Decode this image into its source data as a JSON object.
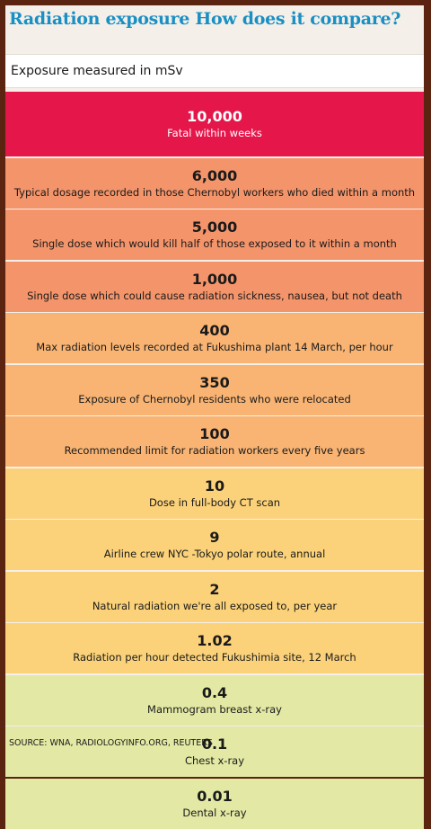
{
  "header": {
    "title": "Radiation exposure How does it compare?",
    "subtitle": "Exposure measured in mSv"
  },
  "source": "SOURCE: WNA, RADIOLOGYINFO.ORG, REUTERS",
  "chart_data": {
    "type": "table",
    "unit": "mSv",
    "rows": [
      {
        "value": "10,000",
        "label": "Fatal within weeks",
        "color": "#e5164a"
      },
      {
        "value": "6,000",
        "label": "Typical dosage recorded in those Chernobyl workers who died within a month",
        "color": "#f4946a"
      },
      {
        "value": "5,000",
        "label": "Single dose which would kill half of those exposed to it within a month",
        "color": "#f4946a"
      },
      {
        "value": "1,000",
        "label": "Single dose which could cause radiation sickness, nausea, but not death",
        "color": "#f4946a"
      },
      {
        "value": "400",
        "label": "Max radiation levels recorded at Fukushima plant 14 March, per hour",
        "color": "#f9b473"
      },
      {
        "value": "350",
        "label": "Exposure of Chernobyl residents who were relocated",
        "color": "#f9b473"
      },
      {
        "value": "100",
        "label": "Recommended limit for radiation workers every five years",
        "color": "#f9b473"
      },
      {
        "value": "10",
        "label": "Dose in full-body CT scan",
        "color": "#fbd27a"
      },
      {
        "value": "9",
        "label": "Airline crew NYC -Tokyo polar route, annual",
        "color": "#fbd27a"
      },
      {
        "value": "2",
        "label": "Natural radiation we're all exposed to, per year",
        "color": "#fbd27a"
      },
      {
        "value": "1.02",
        "label": "Radiation per hour detected Fukushimia site, 12 March",
        "color": "#fbd27a"
      },
      {
        "value": "0.4",
        "label": "Mammogram breast x-ray",
        "color": "#e3e9a4"
      },
      {
        "value": "0.1",
        "label": "Chest x-ray",
        "color": "#e3e9a4"
      },
      {
        "value": "0.01",
        "label": "Dental x-ray",
        "color": "#e3e9a4"
      }
    ]
  }
}
